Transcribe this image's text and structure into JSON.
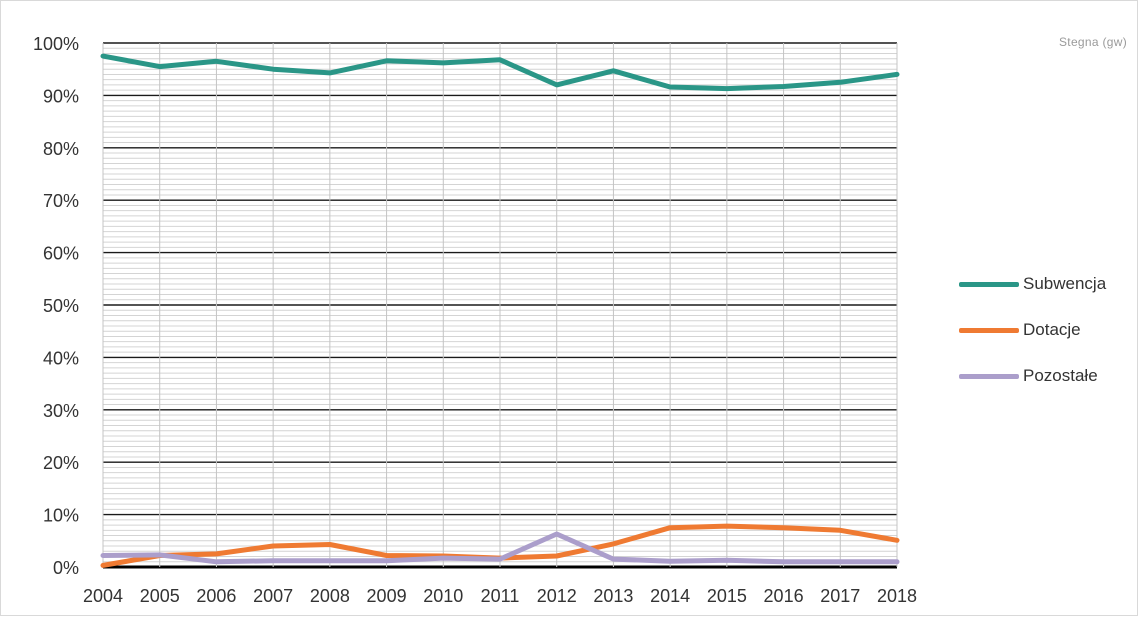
{
  "note": "Stegna  (gw)",
  "chart_data": {
    "type": "line",
    "x": [
      "2004",
      "2005",
      "2006",
      "2007",
      "2008",
      "2009",
      "2010",
      "2011",
      "2012",
      "2013",
      "2014",
      "2015",
      "2016",
      "2017",
      "2018"
    ],
    "ylim": [
      0,
      100
    ],
    "y_ticks": [
      "0%",
      "10%",
      "20%",
      "30%",
      "40%",
      "50%",
      "60%",
      "70%",
      "80%",
      "90%",
      "100%"
    ],
    "grid": true,
    "legend_position": "right",
    "series": [
      {
        "name": "Subwencja",
        "color": "#2a9687",
        "values": [
          97.5,
          95.5,
          96.5,
          95.0,
          94.3,
          96.6,
          96.2,
          96.8,
          92.0,
          94.7,
          91.6,
          91.3,
          91.7,
          92.5,
          94.0
        ]
      },
      {
        "name": "Dotacje",
        "color": "#ef7a32",
        "values": [
          0.3,
          2.2,
          2.5,
          4.0,
          4.3,
          2.2,
          2.1,
          1.7,
          2.1,
          4.4,
          7.5,
          7.8,
          7.5,
          7.0,
          5.1
        ]
      },
      {
        "name": "Pozostałe",
        "color": "#ab9ecb",
        "values": [
          2.2,
          2.3,
          1.0,
          1.2,
          1.2,
          1.2,
          1.7,
          1.5,
          6.3,
          1.5,
          1.1,
          1.3,
          1.0,
          1.0,
          1.0
        ]
      }
    ]
  }
}
